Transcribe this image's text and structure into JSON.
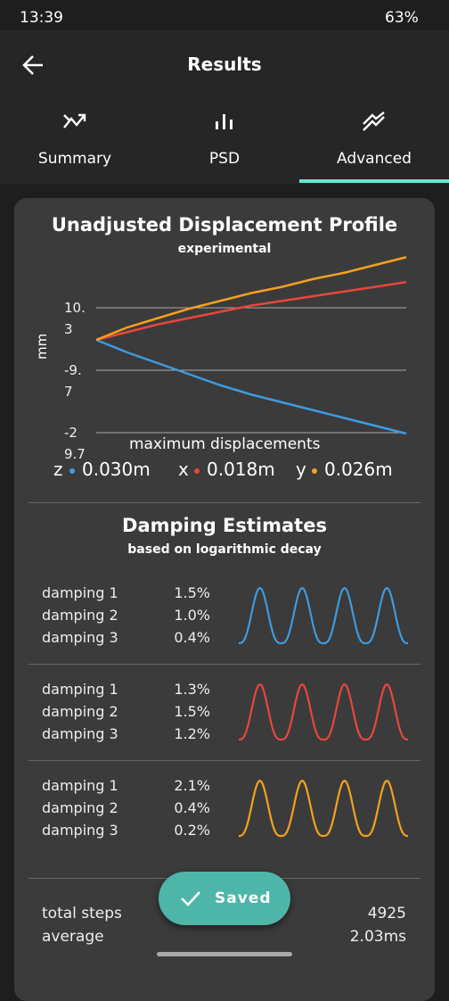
{
  "status": {
    "time": "13:39",
    "battery": "63%"
  },
  "header": {
    "title": "Results"
  },
  "tabs": [
    "Summary",
    "PSD",
    "Advanced"
  ],
  "chart_data": {
    "type": "line",
    "title": "Unadjusted Displacement Profile",
    "subtitle": "experimental",
    "ylabel": "mm",
    "x": [
      0,
      1,
      2,
      3,
      4,
      5,
      6,
      7,
      8,
      9,
      10
    ],
    "xlim": [
      0,
      10
    ],
    "ylim": [
      -31,
      27
    ],
    "yticks": [
      10.3,
      -9.7,
      -29.7
    ],
    "grid": true,
    "series": [
      {
        "name": "z",
        "color": "#3d9be0",
        "values": [
          0,
          -4,
          -7.5,
          -11,
          -14.5,
          -17.5,
          -20,
          -22.5,
          -25,
          -27.5,
          -30
        ]
      },
      {
        "name": "x",
        "color": "#e8463c",
        "values": [
          0,
          2.5,
          5,
          7,
          9,
          11,
          12.5,
          14,
          15.5,
          17,
          18.5
        ]
      },
      {
        "name": "y",
        "color": "#f5a01e",
        "values": [
          0,
          4,
          7,
          10,
          12.5,
          15,
          17,
          19.5,
          21.5,
          24,
          26.5
        ]
      }
    ]
  },
  "max_displacements": {
    "label": "maximum displacements",
    "values": [
      "0.030m",
      "0.018m",
      "0.026m"
    ]
  },
  "damping": {
    "title": "Damping Estimates",
    "subtitle": "based on logarithmic decay",
    "groups": [
      [
        {
          "label": "damping 1",
          "value": "1.5%"
        },
        {
          "label": "damping 2",
          "value": "1.0%"
        },
        {
          "label": "damping 3",
          "value": "0.4%"
        }
      ],
      [
        {
          "label": "damping 1",
          "value": "1.3%"
        },
        {
          "label": "damping 2",
          "value": "1.5%"
        },
        {
          "label": "damping 3",
          "value": "1.2%"
        }
      ],
      [
        {
          "label": "damping 1",
          "value": "2.1%"
        },
        {
          "label": "damping 2",
          "value": "0.4%"
        },
        {
          "label": "damping 3",
          "value": "0.2%"
        }
      ]
    ]
  },
  "stats": [
    {
      "label": "total steps",
      "value": "4925"
    },
    {
      "label": "average",
      "value": "2.03ms"
    }
  ],
  "toast": "Saved"
}
